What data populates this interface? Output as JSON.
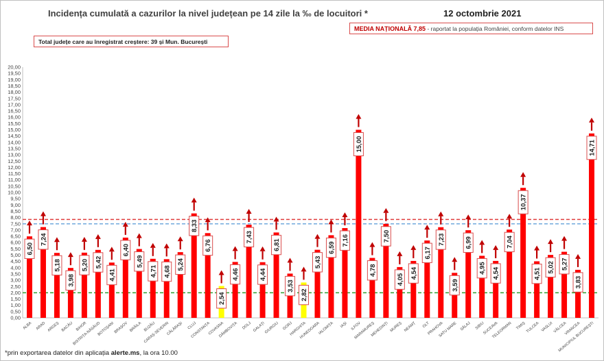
{
  "header": {
    "title": "Incidența cumulată a cazurilor la nivel județean pe 14 zile la ‰ de locuitori *",
    "date": "12 octombrie 2021",
    "media_label": "MEDIA NAȚIONALĂ",
    "media_value": "7,85",
    "media_note": "-   raportat la populația României, conform datelor INS",
    "total_note": "Total județe care au înregistrat creștere:  39 și Mun. București"
  },
  "footnote": {
    "prefix": "*prin exportarea datelor din aplicația ",
    "app": "alerte.ms",
    "suffix": ", la ora 10.00"
  },
  "colors": {
    "bar": "#ff0000",
    "bar_highlight": "#ffff00",
    "arrow": "#c00000",
    "label_border": "#d94c4c",
    "national_line": "#e03c3c",
    "blue_line": "#6fa8dc",
    "green_line": "#2e9e2e"
  },
  "chart_data": {
    "type": "bar",
    "title": "Incidența cumulată a cazurilor la nivel județean pe 14 zile la ‰ de locuitori *",
    "ylim": [
      0,
      20
    ],
    "ytick_step": 0.5,
    "grid": false,
    "reference_lines": [
      {
        "value": 7.85,
        "color": "#e03c3c",
        "style": "dashed"
      },
      {
        "value": 7.5,
        "color": "#6fa8dc",
        "style": "dashed"
      },
      {
        "value": 2.0,
        "color": "#2e9e2e",
        "style": "dashed"
      }
    ],
    "categories": [
      "ALBA",
      "ARAD",
      "ARGEȘ",
      "BACĂU",
      "BIHOR",
      "BISTRIȚA-NĂSĂUD",
      "BOTOȘANI",
      "BRAȘOV",
      "BRĂILA",
      "BUZĂU",
      "CARAȘ-SEVERIN",
      "CĂLĂRAȘI",
      "CLUJ",
      "CONSTANȚA",
      "COVASNA",
      "DÂMBOVIȚA",
      "DOLJ",
      "GALAȚI",
      "GIURGIU",
      "GORJ",
      "HARGHITA",
      "HUNEDOARA",
      "IALOMIȚA",
      "IAȘI",
      "ILFOV",
      "MARAMUREȘ",
      "MEHEDINȚI",
      "MUREȘ",
      "NEAMȚ",
      "OLT",
      "PRAHOVA",
      "SATU MARE",
      "SĂLAJ",
      "SIBIU",
      "SUCEAVA",
      "TELEORMAN",
      "TIMIȘ",
      "TULCEA",
      "VASLUI",
      "VÂLCEA",
      "VRANCEA",
      "MUNICIPIUL BUCUREȘTI"
    ],
    "values": [
      6.5,
      7.24,
      5.18,
      3.98,
      5.2,
      5.42,
      4.41,
      6.4,
      5.49,
      4.71,
      4.68,
      5.24,
      8.33,
      6.76,
      2.54,
      4.46,
      7.43,
      4.44,
      6.81,
      3.53,
      2.82,
      5.43,
      6.59,
      7.16,
      15.0,
      4.78,
      7.5,
      4.05,
      4.54,
      6.17,
      7.23,
      3.59,
      6.99,
      4.95,
      4.54,
      7.04,
      10.37,
      4.51,
      5.02,
      5.27,
      3.83,
      14.71
    ],
    "value_labels": [
      "6,50",
      "7,24",
      "5,18",
      "3,98",
      "5,20",
      "5,42",
      "4,41",
      "6,40",
      "5,49",
      "4,71",
      "4,68",
      "5,24",
      "8,33",
      "6,76",
      "2,54",
      "4,46",
      "7,43",
      "4,44",
      "6,81",
      "3,53",
      "2,82",
      "5,43",
      "6,59",
      "7,16",
      "15,00",
      "4,78",
      "7,50",
      "4,05",
      "4,54",
      "6,17",
      "7,23",
      "3,59",
      "6,99",
      "4,95",
      "4,54",
      "7,04",
      "10,37",
      "4,51",
      "5,02",
      "5,27",
      "3,83",
      "14,71"
    ],
    "highlighted": [
      "COVASNA",
      "HARGHITA"
    ],
    "trend": "all-up",
    "ytick_labels": [
      "0,00",
      "0,50",
      "1,00",
      "1,50",
      "2,00",
      "2,50",
      "3,00",
      "3,50",
      "4,00",
      "4,50",
      "5,00",
      "5,50",
      "6,00",
      "6,50",
      "7,00",
      "7,50",
      "8,00",
      "8,50",
      "9,00",
      "9,50",
      "10,00",
      "10,50",
      "11,00",
      "11,50",
      "12,00",
      "12,50",
      "13,00",
      "13,50",
      "14,00",
      "14,50",
      "15,00",
      "15,50",
      "16,00",
      "16,50",
      "17,00",
      "17,50",
      "18,00",
      "18,50",
      "19,00",
      "19,50",
      "20,00"
    ]
  }
}
